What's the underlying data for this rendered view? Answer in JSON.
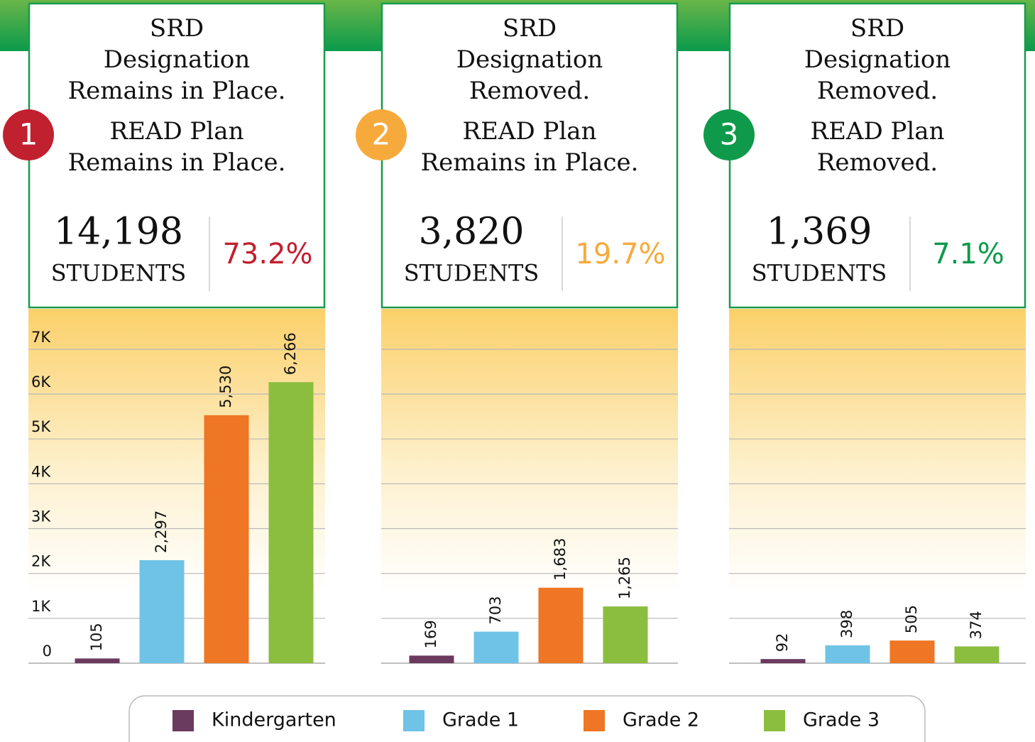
{
  "chart_data": [
    {
      "type": "bar",
      "badge": "1",
      "accent": "#c1202f",
      "srd": [
        "SRD",
        "Designation",
        "Remains in Place."
      ],
      "read": [
        "READ Plan",
        "Remains in Place."
      ],
      "total": {
        "value": 14198,
        "label": "14,198"
      },
      "total_unit": "STUDENTS",
      "share": 73.2,
      "share_label": "73.2%",
      "categories": [
        "Kindergarten",
        "Grade 1",
        "Grade 2",
        "Grade 3"
      ],
      "colors": [
        "#6b3a5e",
        "#6ec3e6",
        "#ee7624",
        "#8bbe3f"
      ],
      "values": [
        105,
        2297,
        5530,
        6266
      ],
      "value_labels": [
        "105",
        "2,297",
        "5,530",
        "6,266"
      ],
      "ylim": [
        0,
        7900
      ],
      "show_tick_labels": true,
      "yticks": [
        0,
        {
          "value": 1000,
          "label": "1K"
        },
        {
          "value": 2000,
          "label": "2K"
        },
        {
          "value": 3000,
          "label": "3K"
        },
        {
          "value": 4000,
          "label": "4K"
        },
        {
          "value": 5000,
          "label": "5K"
        },
        {
          "value": 6000,
          "label": "6K"
        },
        {
          "value": 7000,
          "label": "7K"
        }
      ]
    },
    {
      "type": "bar",
      "badge": "2",
      "accent": "#f7aa3c",
      "srd": [
        "SRD",
        "Designation",
        "Removed."
      ],
      "read": [
        "READ Plan",
        "Remains in Place."
      ],
      "total": {
        "value": 3820,
        "label": "3,820"
      },
      "total_unit": "STUDENTS",
      "share": 19.7,
      "share_label": "19.7%",
      "categories": [
        "Kindergarten",
        "Grade 1",
        "Grade 2",
        "Grade 3"
      ],
      "colors": [
        "#6b3a5e",
        "#6ec3e6",
        "#ee7624",
        "#8bbe3f"
      ],
      "values": [
        169,
        703,
        1683,
        1265
      ],
      "value_labels": [
        "169",
        "703",
        "1,683",
        "1,265"
      ],
      "ylim": [
        0,
        7900
      ],
      "show_tick_labels": false,
      "yticks": [
        0,
        1000,
        2000,
        3000,
        4000,
        5000,
        6000,
        7000
      ]
    },
    {
      "type": "bar",
      "badge": "3",
      "accent": "#0f9a4b",
      "srd": [
        "SRD",
        "Designation",
        "Removed."
      ],
      "read": [
        "READ Plan",
        "Removed."
      ],
      "total": {
        "value": 1369,
        "label": "1,369"
      },
      "total_unit": "STUDENTS",
      "share": 7.1,
      "share_label": "7.1%",
      "categories": [
        "Kindergarten",
        "Grade 1",
        "Grade 2",
        "Grade 3"
      ],
      "colors": [
        "#6b3a5e",
        "#6ec3e6",
        "#ee7624",
        "#8bbe3f"
      ],
      "values": [
        92,
        398,
        505,
        374
      ],
      "value_labels": [
        "92",
        "398",
        "505",
        "374"
      ],
      "ylim": [
        0,
        7900
      ],
      "show_tick_labels": false,
      "yticks": [
        0,
        1000,
        2000,
        3000,
        4000,
        5000,
        6000,
        7000
      ]
    }
  ]
}
